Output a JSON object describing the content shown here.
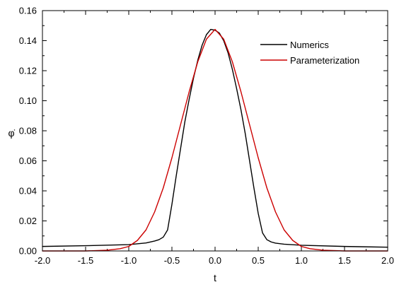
{
  "chart_data": {
    "type": "line",
    "xlabel": "t",
    "ylabel": "φ̇",
    "xlim": [
      -2.0,
      2.0
    ],
    "ylim": [
      0.0,
      0.16
    ],
    "x_ticks": [
      -2.0,
      -1.5,
      -1.0,
      -0.5,
      0.0,
      0.5,
      1.0,
      1.5,
      2.0
    ],
    "x_tick_labels": [
      "-2.0",
      "-1.5",
      "-1.0",
      "-0.5",
      "0.0",
      "0.5",
      "1.0",
      "1.5",
      "2.0"
    ],
    "y_ticks": [
      0.0,
      0.02,
      0.04,
      0.06,
      0.08,
      0.1,
      0.12,
      0.14,
      0.16
    ],
    "y_tick_labels": [
      "0.00",
      "0.02",
      "0.04",
      "0.06",
      "0.08",
      "0.10",
      "0.12",
      "0.14",
      "0.16"
    ],
    "grid": false,
    "legend_position": "top-right",
    "series": [
      {
        "name": "Numerics",
        "color": "#000000",
        "x": [
          -2.0,
          -1.5,
          -1.0,
          -0.8,
          -0.7,
          -0.65,
          -0.6,
          -0.55,
          -0.5,
          -0.45,
          -0.4,
          -0.35,
          -0.3,
          -0.25,
          -0.2,
          -0.15,
          -0.1,
          -0.05,
          0.0,
          0.05,
          0.1,
          0.15,
          0.2,
          0.25,
          0.3,
          0.35,
          0.4,
          0.45,
          0.5,
          0.55,
          0.6,
          0.65,
          0.7,
          0.8,
          1.0,
          1.5,
          2.0
        ],
        "y": [
          0.003,
          0.0035,
          0.0042,
          0.0053,
          0.0066,
          0.0075,
          0.0092,
          0.014,
          0.031,
          0.05,
          0.068,
          0.086,
          0.101,
          0.115,
          0.127,
          0.137,
          0.144,
          0.1475,
          0.147,
          0.145,
          0.14,
          0.132,
          0.121,
          0.108,
          0.094,
          0.078,
          0.06,
          0.042,
          0.025,
          0.012,
          0.0075,
          0.006,
          0.0052,
          0.0045,
          0.0038,
          0.003,
          0.0025
        ]
      },
      {
        "name": "Parameterization",
        "color": "#cc0000",
        "x": [
          -2.0,
          -1.5,
          -1.25,
          -1.1,
          -1.0,
          -0.9,
          -0.8,
          -0.7,
          -0.6,
          -0.5,
          -0.4,
          -0.3,
          -0.2,
          -0.1,
          0.0,
          0.1,
          0.2,
          0.3,
          0.4,
          0.5,
          0.6,
          0.7,
          0.8,
          0.9,
          1.0,
          1.1,
          1.25,
          1.5,
          2.0
        ],
        "y": [
          0.0,
          0.0,
          0.0005,
          0.0015,
          0.003,
          0.007,
          0.014,
          0.026,
          0.042,
          0.062,
          0.084,
          0.106,
          0.126,
          0.141,
          0.1475,
          0.141,
          0.126,
          0.106,
          0.084,
          0.062,
          0.042,
          0.026,
          0.014,
          0.007,
          0.003,
          0.0015,
          0.0005,
          0.0,
          0.0
        ]
      }
    ]
  }
}
